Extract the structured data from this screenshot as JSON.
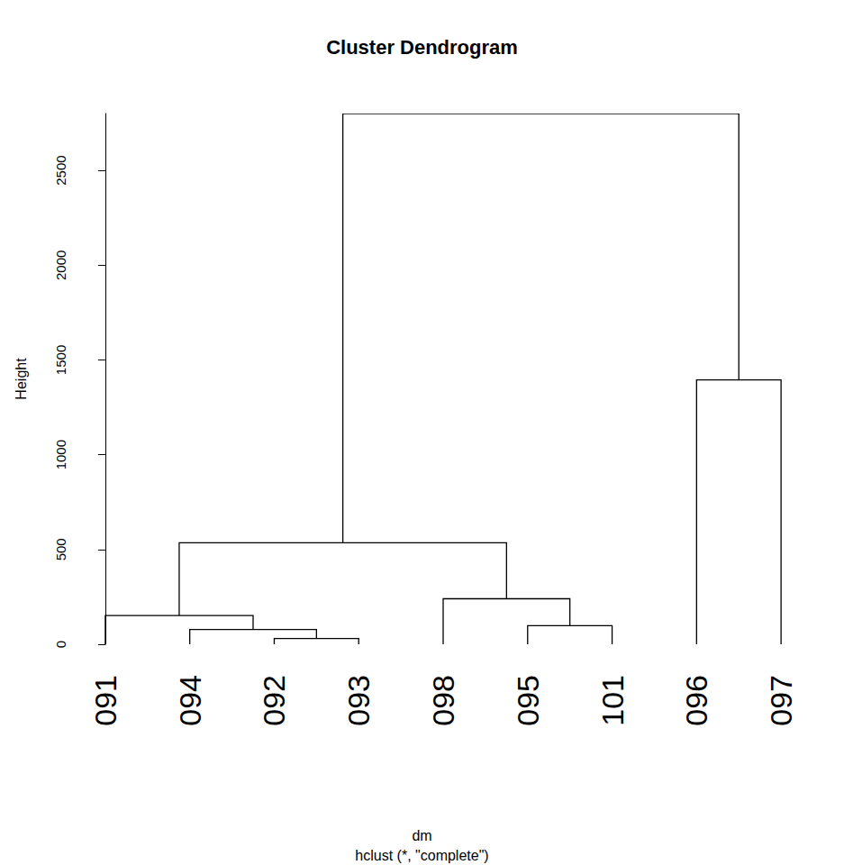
{
  "chart_data": {
    "type": "dendrogram",
    "title": "Cluster Dendrogram",
    "x_label": "dm",
    "subtitle": "hclust (*, \"complete\")",
    "y_label": "Height",
    "leaves": [
      "091",
      "094",
      "092",
      "093",
      "098",
      "095",
      "101",
      "096",
      "097"
    ],
    "merges": [
      {
        "a": "092",
        "b": "093",
        "height": 30
      },
      {
        "a": "094",
        "b": 0,
        "height": 78
      },
      {
        "a": "095",
        "b": "101",
        "height": 98
      },
      {
        "a": "091",
        "b": 1,
        "height": 152
      },
      {
        "a": "098",
        "b": 2,
        "height": 240
      },
      {
        "a": 3,
        "b": 4,
        "height": 535
      },
      {
        "a": "096",
        "b": "097",
        "height": 1395
      },
      {
        "a": 5,
        "b": 6,
        "height": 2800
      }
    ],
    "color": "#000000",
    "ylim": [
      0,
      2800
    ],
    "yticks": [
      0,
      500,
      1000,
      1500,
      2000,
      2500
    ],
    "grid": false,
    "tick_labels": true
  }
}
